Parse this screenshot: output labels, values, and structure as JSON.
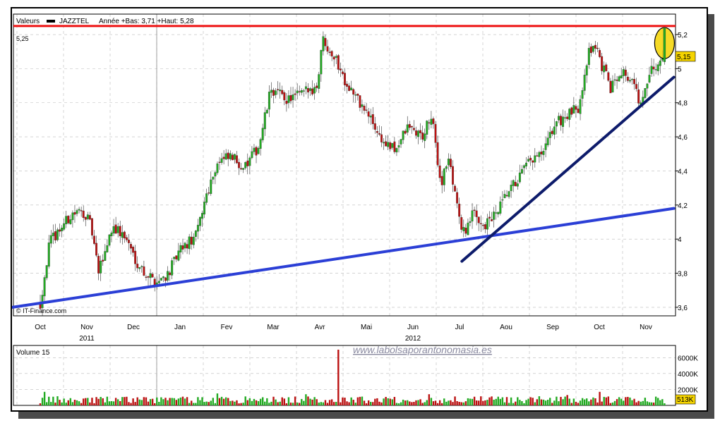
{
  "header": {
    "prefix": "Valeurs",
    "ticker": "JAZZTEL",
    "stats": "Année +Bas: 3,71 +Haut: 5,28"
  },
  "resistance_label": "5,25",
  "last_price_label": "5,15",
  "source_label": "© IT-Finance.com",
  "volume_title": "Volume 15",
  "volume_last_label": "513K",
  "watermark": "www.labolsaporantonomasia.es",
  "colors": {
    "up": "#22aa22",
    "down": "#bb1111",
    "resistance": "#ee1111",
    "support": "#2b3fd6",
    "trendline": "#0d1b6b",
    "highlight": "#f5d400",
    "watermark": "#8a8aa0",
    "grid": "#bbbbbb"
  },
  "chart_data": {
    "type": "candlestick",
    "ylim": [
      3.55,
      5.32
    ],
    "y_ticks": [
      "5,2",
      "5",
      "4,8",
      "4,6",
      "4,4",
      "4,2",
      "4",
      "3,8",
      "3,6"
    ],
    "y_tick_values": [
      5.2,
      5.0,
      4.8,
      4.6,
      4.4,
      4.2,
      4.0,
      3.8,
      3.6
    ],
    "x_months": [
      "Oct",
      "Nov",
      "Dec",
      "Jan",
      "Fev",
      "Mar",
      "Avr",
      "Mai",
      "Jun",
      "Jul",
      "Aou",
      "Sep",
      "Oct",
      "Nov"
    ],
    "x_years": [
      {
        "label": "2011",
        "month_index": 1
      },
      {
        "label": "2012",
        "month_index": 8
      }
    ],
    "year_separator_month_index": 2.5,
    "resistance": 5.25,
    "last_price": 5.15,
    "support_line": {
      "from": {
        "month": -0.6,
        "price": 3.6
      },
      "to": {
        "month": 13.6,
        "price": 4.18
      }
    },
    "rising_trendline": {
      "from": {
        "month": 9.05,
        "price": 3.87
      },
      "to": {
        "month": 13.6,
        "price": 4.95
      }
    },
    "price_path": [
      [
        0.0,
        3.62
      ],
      [
        0.2,
        3.98
      ],
      [
        0.45,
        4.07
      ],
      [
        0.7,
        4.15
      ],
      [
        0.95,
        4.16
      ],
      [
        1.1,
        4.06
      ],
      [
        1.25,
        3.8
      ],
      [
        1.55,
        4.08
      ],
      [
        1.85,
        4.0
      ],
      [
        2.05,
        3.88
      ],
      [
        2.25,
        3.8
      ],
      [
        2.5,
        3.75
      ],
      [
        2.75,
        3.8
      ],
      [
        3.0,
        3.93
      ],
      [
        3.35,
        4.02
      ],
      [
        3.55,
        4.25
      ],
      [
        3.8,
        4.45
      ],
      [
        4.1,
        4.48
      ],
      [
        4.4,
        4.42
      ],
      [
        4.7,
        4.55
      ],
      [
        4.95,
        4.88
      ],
      [
        5.3,
        4.82
      ],
      [
        5.6,
        4.85
      ],
      [
        5.95,
        4.9
      ],
      [
        6.05,
        5.18
      ],
      [
        6.3,
        5.08
      ],
      [
        6.55,
        4.93
      ],
      [
        6.85,
        4.8
      ],
      [
        7.1,
        4.7
      ],
      [
        7.35,
        4.57
      ],
      [
        7.6,
        4.52
      ],
      [
        7.9,
        4.66
      ],
      [
        8.2,
        4.6
      ],
      [
        8.4,
        4.72
      ],
      [
        8.6,
        4.32
      ],
      [
        8.75,
        4.48
      ],
      [
        8.95,
        4.22
      ],
      [
        9.05,
        4.02
      ],
      [
        9.3,
        4.15
      ],
      [
        9.55,
        4.08
      ],
      [
        9.8,
        4.15
      ],
      [
        10.0,
        4.25
      ],
      [
        10.25,
        4.35
      ],
      [
        10.5,
        4.45
      ],
      [
        10.8,
        4.5
      ],
      [
        11.05,
        4.68
      ],
      [
        11.3,
        4.72
      ],
      [
        11.55,
        4.77
      ],
      [
        11.75,
        5.08
      ],
      [
        11.9,
        5.15
      ],
      [
        12.05,
        5.02
      ],
      [
        12.25,
        4.88
      ],
      [
        12.45,
        5.0
      ],
      [
        12.7,
        4.93
      ],
      [
        12.9,
        4.78
      ],
      [
        13.1,
        4.98
      ],
      [
        13.3,
        5.03
      ],
      [
        13.4,
        5.15
      ]
    ],
    "candle_count": 290,
    "volume_ticks": [
      "6000K",
      "4000K",
      "2000K"
    ],
    "volume_tick_values": [
      6000,
      4000,
      2000
    ],
    "volume_max": 7000,
    "volume_spikes": [
      {
        "month": 0.1,
        "value": 1700
      },
      {
        "month": 3.8,
        "value": 1500
      },
      {
        "month": 5.7,
        "value": 1400
      },
      {
        "month": 6.4,
        "value": 7000
      },
      {
        "month": 8.35,
        "value": 1400
      },
      {
        "month": 11.3,
        "value": 1300
      },
      {
        "month": 12.0,
        "value": 1700
      },
      {
        "month": 13.2,
        "value": 1100
      }
    ],
    "volume_last": 513
  }
}
